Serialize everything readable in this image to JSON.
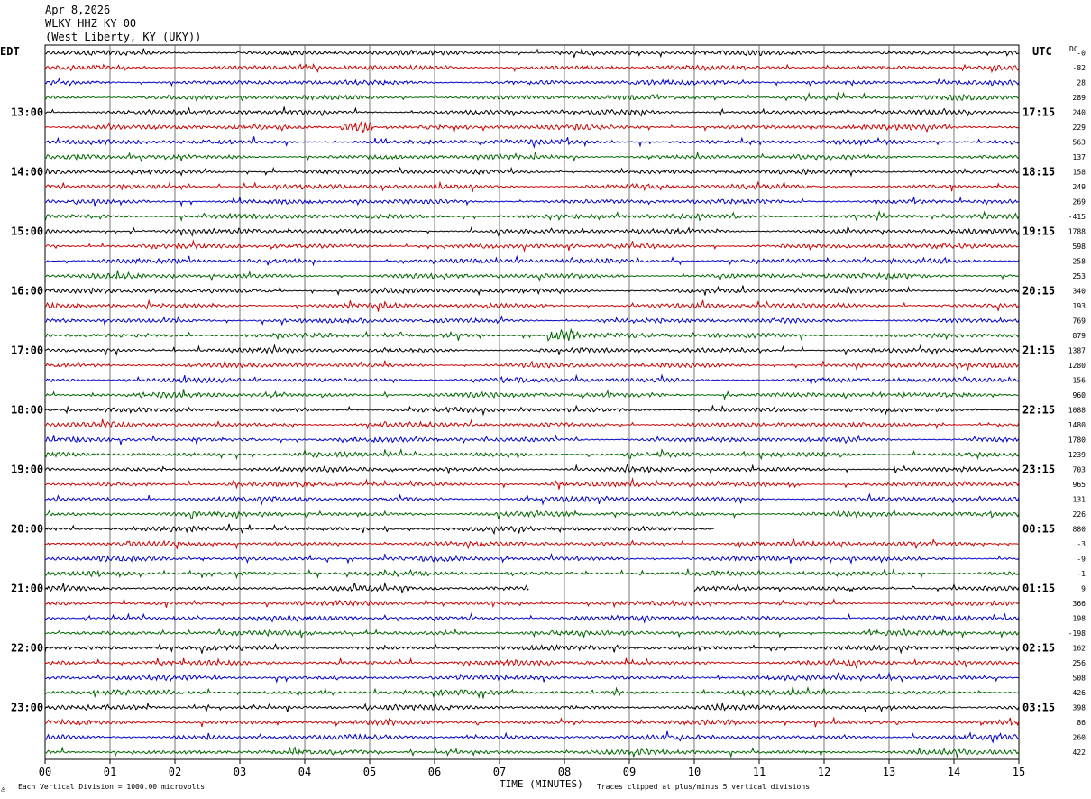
{
  "header": {
    "date": "Apr 8,2026",
    "station": "WLKY HHZ KY 00",
    "location": "(West Liberty, KY (UKY))"
  },
  "left_timezone": "EDT",
  "right_timezone": "UTC",
  "dc_label": "DC",
  "footer": {
    "scale": "Each Vertical Division = 1000.00 microvolts",
    "clip": "Traces clipped at plus/minus 5 vertical divisions",
    "xlabel": "TIME (MINUTES)"
  },
  "colors": {
    "trace_cycle": [
      "#000000",
      "#cc0000",
      "#0000cc",
      "#006600"
    ],
    "grid": "#000000",
    "background": "#ffffff"
  },
  "chart_data": {
    "type": "line",
    "xlabel": "TIME (MINUTES)",
    "xlim": [
      0,
      15
    ],
    "x_ticks": [
      "00",
      "01",
      "02",
      "03",
      "04",
      "05",
      "06",
      "07",
      "08",
      "09",
      "10",
      "11",
      "12",
      "13",
      "14",
      "15"
    ],
    "left_hour_labels": [
      "13:00",
      "14:00",
      "15:00",
      "16:00",
      "17:00",
      "18:00",
      "19:00",
      "20:00",
      "21:00",
      "22:00",
      "23:00"
    ],
    "right_hour_labels": [
      "17:15",
      "18:15",
      "19:15",
      "20:15",
      "21:15",
      "22:15",
      "23:15",
      "00:15",
      "01:15",
      "02:15",
      "03:15"
    ],
    "row_minutes": 15,
    "grid": true,
    "rows": [
      {
        "dc": "-0",
        "end_minute": 15
      },
      {
        "dc": "-82",
        "end_minute": 15
      },
      {
        "dc": "28",
        "end_minute": 15
      },
      {
        "dc": "289",
        "end_minute": 15
      },
      {
        "dc": "240",
        "end_minute": 15
      },
      {
        "dc": "229",
        "end_minute": 15,
        "burst_minute": 4.8
      },
      {
        "dc": "563",
        "end_minute": 15
      },
      {
        "dc": "137",
        "end_minute": 15
      },
      {
        "dc": "158",
        "end_minute": 15
      },
      {
        "dc": "249",
        "end_minute": 15
      },
      {
        "dc": "269",
        "end_minute": 15
      },
      {
        "dc": "-415",
        "end_minute": 15
      },
      {
        "dc": "1788",
        "end_minute": 15
      },
      {
        "dc": "598",
        "end_minute": 15
      },
      {
        "dc": "258",
        "end_minute": 15
      },
      {
        "dc": "253",
        "end_minute": 15
      },
      {
        "dc": "340",
        "end_minute": 15
      },
      {
        "dc": "193",
        "end_minute": 15
      },
      {
        "dc": "769",
        "end_minute": 15
      },
      {
        "dc": "879",
        "end_minute": 15,
        "burst_minute": 8.0
      },
      {
        "dc": "1387",
        "end_minute": 15
      },
      {
        "dc": "1280",
        "end_minute": 15
      },
      {
        "dc": "156",
        "end_minute": 15
      },
      {
        "dc": "960",
        "end_minute": 15
      },
      {
        "dc": "1088",
        "end_minute": 15
      },
      {
        "dc": "1480",
        "end_minute": 15
      },
      {
        "dc": "1780",
        "end_minute": 15
      },
      {
        "dc": "1239",
        "end_minute": 15
      },
      {
        "dc": "703",
        "end_minute": 15
      },
      {
        "dc": "965",
        "end_minute": 15
      },
      {
        "dc": "131",
        "end_minute": 15
      },
      {
        "dc": "226",
        "end_minute": 15
      },
      {
        "dc": "880",
        "end_minute": 10.3
      },
      {
        "dc": "-3",
        "end_minute": 15
      },
      {
        "dc": "-9",
        "end_minute": 15
      },
      {
        "dc": "-1",
        "end_minute": 15
      },
      {
        "dc": "9",
        "end_minute": 15,
        "gap": [
          7.45,
          10.0
        ]
      },
      {
        "dc": "366",
        "end_minute": 15
      },
      {
        "dc": "198",
        "end_minute": 15
      },
      {
        "dc": "-198",
        "end_minute": 15
      },
      {
        "dc": "162",
        "end_minute": 15
      },
      {
        "dc": "256",
        "end_minute": 15
      },
      {
        "dc": "508",
        "end_minute": 15
      },
      {
        "dc": "426",
        "end_minute": 15
      },
      {
        "dc": "398",
        "end_minute": 15
      },
      {
        "dc": "86",
        "end_minute": 15
      },
      {
        "dc": "260",
        "end_minute": 15
      },
      {
        "dc": "422",
        "end_minute": 15
      }
    ]
  }
}
